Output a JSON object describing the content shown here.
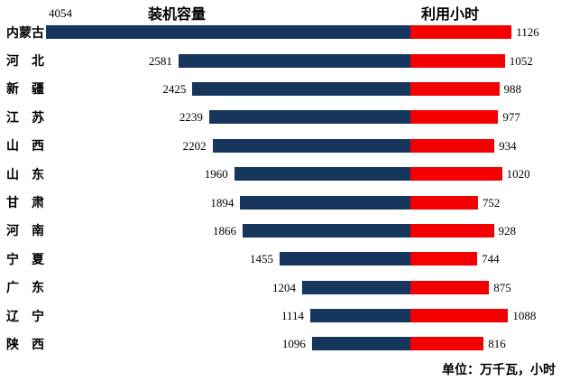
{
  "chart_data": {
    "type": "bar",
    "variant": "diverging-horizontal",
    "title_left": "装机容量",
    "title_right": "利用小时",
    "unit_note": "单位：万千瓦，小时",
    "categories": [
      "内蒙古",
      "河　北",
      "新　疆",
      "江　苏",
      "山　西",
      "山　东",
      "甘　肃",
      "河　南",
      "宁　夏",
      "广　东",
      "辽　宁",
      "陕　西"
    ],
    "series": [
      {
        "name": "装机容量",
        "side": "left",
        "color": "#16365D",
        "values": [
          4054,
          2581,
          2425,
          2239,
          2202,
          1960,
          1894,
          1866,
          1455,
          1204,
          1114,
          1096
        ]
      },
      {
        "name": "利用小时",
        "side": "right",
        "color": "#F40000",
        "values": [
          1126,
          1052,
          988,
          977,
          934,
          1020,
          752,
          928,
          744,
          875,
          1088,
          816
        ]
      }
    ],
    "axis": {
      "left_max": 4054,
      "shared_scale": true,
      "grid": false,
      "legend_position": "top-as-titles"
    }
  },
  "colors": {
    "capacity_bar": "#16365D",
    "hours_bar": "#F40000",
    "background": "#FFFFFF",
    "text": "#000000"
  }
}
